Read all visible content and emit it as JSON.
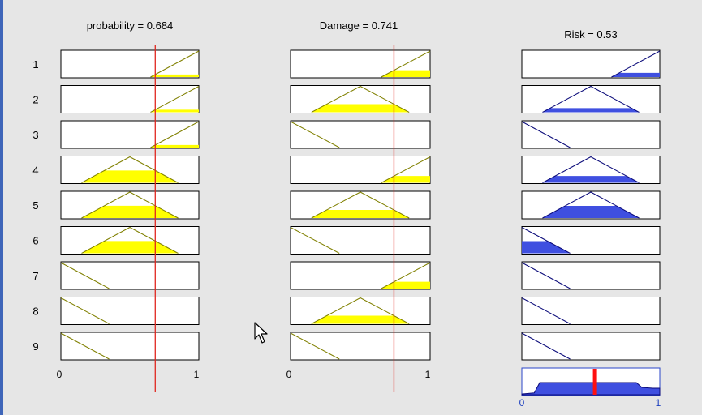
{
  "inputs": [
    {
      "name": "probability",
      "value": 0.684,
      "title": "probability = 0.684"
    },
    {
      "name": "Damage",
      "value": 0.741,
      "title": "Damage = 0.741"
    }
  ],
  "output": {
    "name": "Risk",
    "value": 0.53,
    "title": "Risk = 0.53"
  },
  "rule_numbers": [
    "1",
    "2",
    "3",
    "4",
    "5",
    "6",
    "7",
    "8",
    "9"
  ],
  "axis_ticks": {
    "min": "0",
    "max": "1"
  },
  "membership_functions": {
    "low": [
      [
        0,
        1
      ],
      [
        0.35,
        0
      ]
    ],
    "medium": [
      [
        0.15,
        0
      ],
      [
        0.5,
        1
      ],
      [
        0.85,
        0
      ]
    ],
    "high": [
      [
        0.65,
        0
      ],
      [
        1,
        1
      ]
    ]
  },
  "rules": [
    {
      "probability": "high",
      "damage": "high",
      "risk": "high"
    },
    {
      "probability": "high",
      "damage": "medium",
      "risk": "medium"
    },
    {
      "probability": "high",
      "damage": "low",
      "risk": "low"
    },
    {
      "probability": "medium",
      "damage": "high",
      "risk": "medium"
    },
    {
      "probability": "medium",
      "damage": "medium",
      "risk": "medium"
    },
    {
      "probability": "medium",
      "damage": "low",
      "risk": "low"
    },
    {
      "probability": "low",
      "damage": "high",
      "risk": "low"
    },
    {
      "probability": "low",
      "damage": "medium",
      "risk": "low"
    },
    {
      "probability": "low",
      "damage": "low",
      "risk": "low"
    }
  ],
  "rule_firing": [
    0.16,
    0.16,
    0.0,
    0.26,
    0.47,
    0.47,
    0.0,
    0.0,
    0.0
  ],
  "aggregate_outline": [
    [
      0,
      0.03
    ],
    [
      0.09,
      0.07
    ],
    [
      0.13,
      0.47
    ],
    [
      0.17,
      0.47
    ],
    [
      0.3,
      0.47
    ],
    [
      0.5,
      0.47
    ],
    [
      0.7,
      0.47
    ],
    [
      0.83,
      0.47
    ],
    [
      0.87,
      0.28
    ],
    [
      0.95,
      0.25
    ],
    [
      1,
      0.25
    ]
  ],
  "colors": {
    "input_fill": "#ffff00",
    "input_outline": "#808000",
    "output_fill": "#3f4fe0",
    "output_outline": "#0b0b7a",
    "indicator_line": "#e0261f",
    "result_marker": "#ff1010",
    "window_border": "#3f66b9"
  },
  "icons": {
    "pointer": "mouse-pointer-icon"
  }
}
